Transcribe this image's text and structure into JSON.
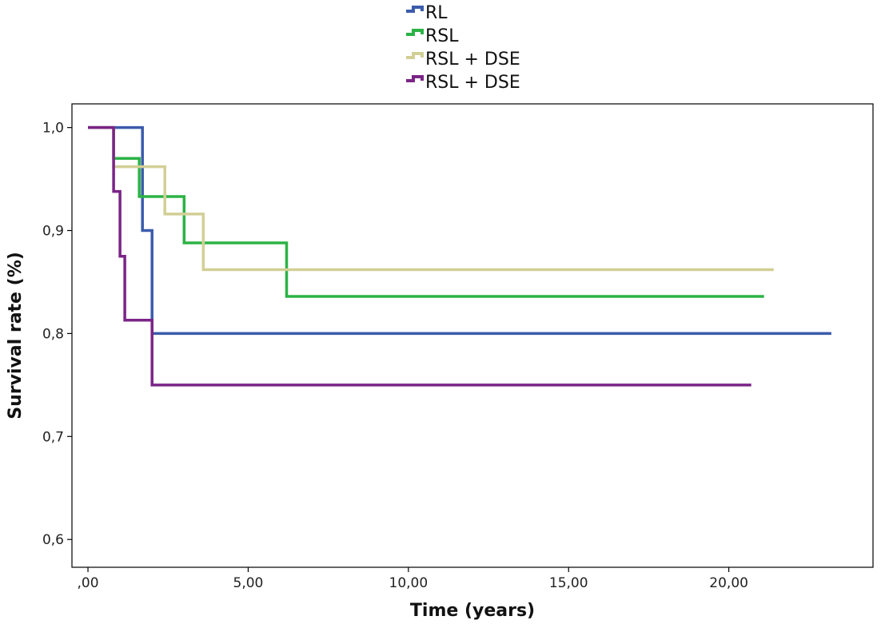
{
  "chart_data": {
    "type": "line",
    "step": true,
    "xlabel": "Time (years)",
    "ylabel": "Survival rate (%)",
    "xlim": [
      -0.5,
      24.5
    ],
    "ylim": [
      0.573,
      1.023
    ],
    "xticks": [
      0,
      5,
      10,
      15,
      20
    ],
    "xtick_labels": [
      ",00",
      "5,00",
      "10,00",
      "15,00",
      "20,00"
    ],
    "yticks": [
      0.6,
      0.7,
      0.8,
      0.9,
      1.0
    ],
    "ytick_labels": [
      "0,6",
      "0,7",
      "0,8",
      "0,9",
      "1,0"
    ],
    "grid": false,
    "legend_position": "top-center",
    "series": [
      {
        "name": "RL",
        "color": "#3b5bab",
        "points": [
          [
            0,
            1.0
          ],
          [
            1.7,
            1.0
          ],
          [
            1.7,
            0.9
          ],
          [
            2.0,
            0.9
          ],
          [
            2.0,
            0.8
          ],
          [
            23.2,
            0.8
          ]
        ]
      },
      {
        "name": "RSL",
        "color": "#2bb345",
        "points": [
          [
            0,
            1.0
          ],
          [
            0.8,
            1.0
          ],
          [
            0.8,
            0.97
          ],
          [
            1.6,
            0.97
          ],
          [
            1.6,
            0.933
          ],
          [
            3.0,
            0.933
          ],
          [
            3.0,
            0.888
          ],
          [
            6.2,
            0.888
          ],
          [
            6.2,
            0.836
          ],
          [
            21.1,
            0.836
          ]
        ]
      },
      {
        "name": "RSL + DSE",
        "color": "#d2cf96",
        "points": [
          [
            0,
            1.0
          ],
          [
            0.8,
            1.0
          ],
          [
            0.8,
            0.962
          ],
          [
            2.4,
            0.962
          ],
          [
            2.4,
            0.916
          ],
          [
            3.6,
            0.916
          ],
          [
            3.6,
            0.862
          ],
          [
            21.4,
            0.862
          ]
        ]
      },
      {
        "name": "RSL + DSE",
        "color": "#7b2487",
        "points": [
          [
            0,
            1.0
          ],
          [
            0.8,
            1.0
          ],
          [
            0.8,
            0.938
          ],
          [
            1.0,
            0.938
          ],
          [
            1.0,
            0.875
          ],
          [
            1.15,
            0.875
          ],
          [
            1.15,
            0.813
          ],
          [
            2.0,
            0.813
          ],
          [
            2.0,
            0.75
          ],
          [
            20.7,
            0.75
          ]
        ]
      }
    ]
  }
}
